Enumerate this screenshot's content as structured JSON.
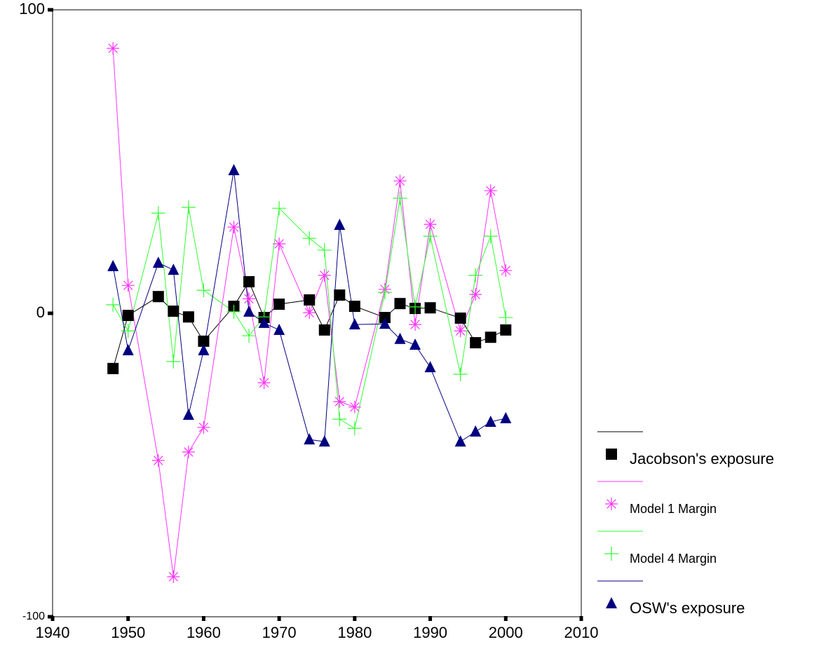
{
  "chart_data": {
    "type": "line",
    "x": [
      1948,
      1950,
      1954,
      1956,
      1958,
      1960,
      1964,
      1966,
      1968,
      1970,
      1974,
      1976,
      1978,
      1980,
      1984,
      1986,
      1988,
      1990,
      1994,
      1996,
      1998,
      2000
    ],
    "series": [
      {
        "name": "Jacobson's exposure",
        "color": "#000000",
        "marker": "square",
        "values": [
          -18.2,
          -0.7,
          5.5,
          0.7,
          -1.2,
          -9.2,
          2.3,
          10.4,
          -1.4,
          3,
          4.4,
          -5.5,
          6,
          2.3,
          -1.4,
          3.2,
          1.6,
          1.8,
          -1.6,
          -9.7,
          -7.9,
          -5.5
        ]
      },
      {
        "name": "Model 1 Margin",
        "color": "#ff33ff",
        "marker": "asterisk",
        "values": [
          87.3,
          9.2,
          -48.5,
          -86.8,
          -45.7,
          -37.6,
          28.4,
          4.8,
          -22.9,
          22.9,
          0.2,
          12.5,
          -29.1,
          -30.9,
          7.9,
          43.6,
          -3.7,
          29.3,
          -5.8,
          6.2,
          40.4,
          14.1
        ]
      },
      {
        "name": "Model 4 Margin",
        "color": "#33ff33",
        "marker": "plus",
        "values": [
          2.8,
          -5.8,
          33,
          -15.9,
          34.9,
          7.6,
          0.5,
          -7.4,
          -1.2,
          34.6,
          24.7,
          20.8,
          -34.9,
          -37.9,
          6.9,
          37.9,
          2.1,
          25.4,
          -20.1,
          12.5,
          25.4,
          -1.4
        ]
      },
      {
        "name": "OSW's exposure",
        "color": "#000080",
        "marker": "triangle",
        "values": [
          15.5,
          -12.2,
          16.6,
          14.3,
          -33.5,
          -12.2,
          47.1,
          0.5,
          -3.2,
          -5.5,
          -41.6,
          -42.3,
          29.1,
          -3.7,
          -3.5,
          -8.5,
          -10.4,
          -17.8,
          -42.3,
          -39,
          -35.8,
          -34.6
        ]
      }
    ],
    "xlim": [
      1940,
      2010
    ],
    "xticks": [
      1940,
      1950,
      1960,
      1970,
      1980,
      1990,
      2000,
      2010
    ],
    "ylim": [
      -100,
      100
    ],
    "yticks": [
      -100,
      0,
      100
    ],
    "legend": "right",
    "grid": false
  }
}
